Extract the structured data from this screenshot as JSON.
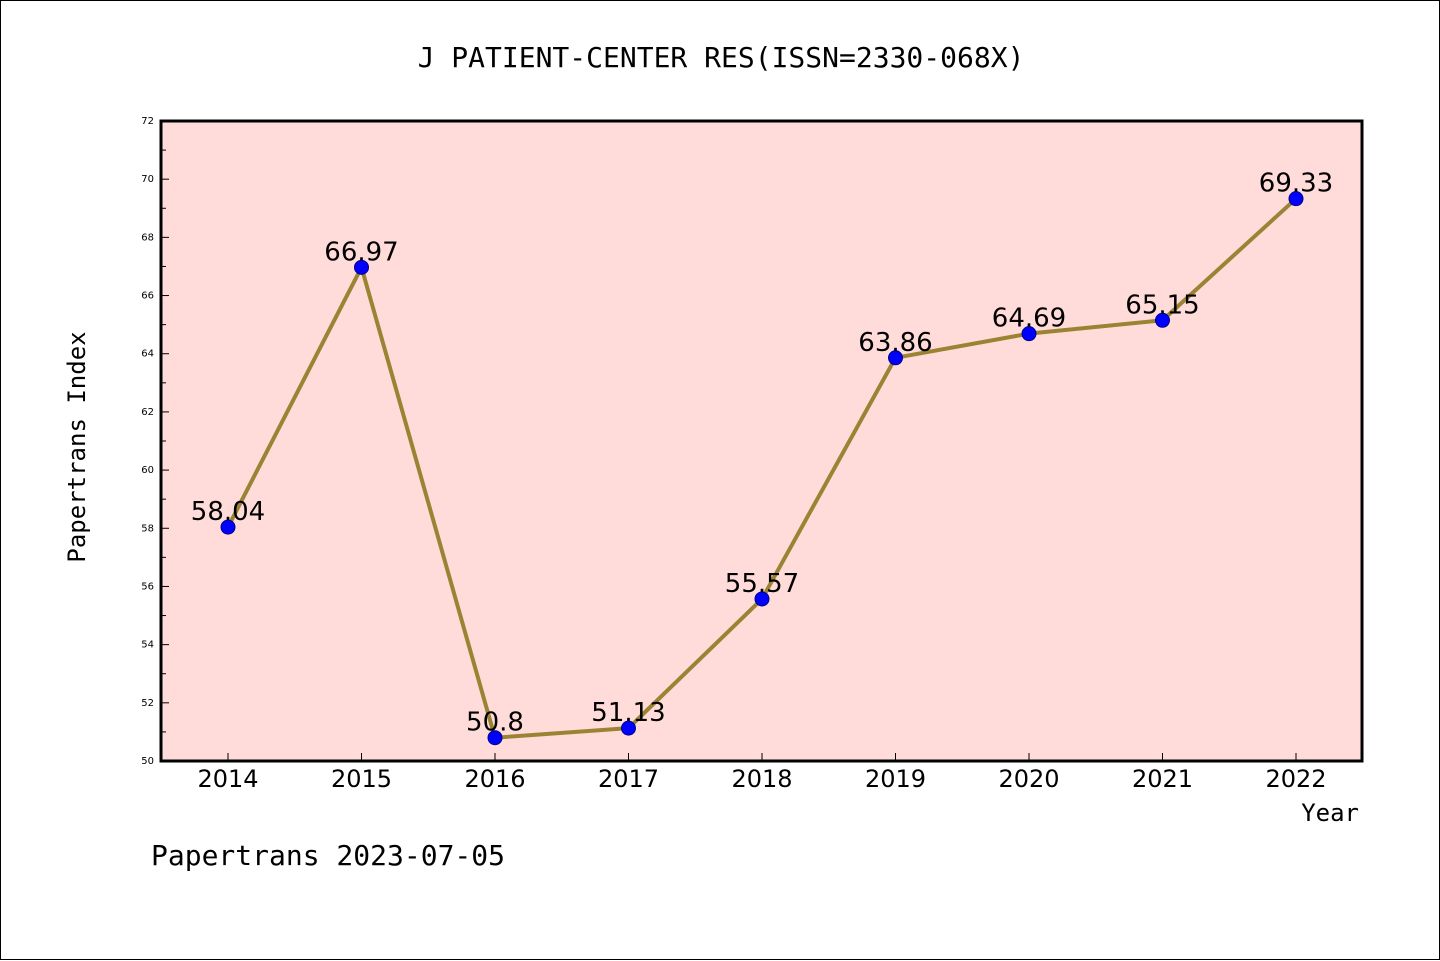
{
  "chart_data": {
    "type": "line",
    "title": "J PATIENT-CENTER RES(ISSN=2330-068X)",
    "xlabel": "Year",
    "ylabel": "Papertrans Index",
    "categories": [
      "2014",
      "2015",
      "2016",
      "2017",
      "2018",
      "2019",
      "2020",
      "2021",
      "2022"
    ],
    "values": [
      58.04,
      66.97,
      50.8,
      51.13,
      55.57,
      63.86,
      64.69,
      65.15,
      69.33
    ],
    "data_labels": [
      "58.04",
      "66.97",
      "50.8",
      "51.13",
      "55.57",
      "63.86",
      "64.69",
      "65.15",
      "69.33"
    ],
    "ylim": [
      50,
      72
    ],
    "yticks": [
      "50",
      "52",
      "54",
      "56",
      "58",
      "60",
      "62",
      "64",
      "66",
      "68",
      "70",
      "72"
    ],
    "footer": "Papertrans 2023-07-05",
    "colors": {
      "plot_background": "#ffdcda",
      "line": "#9a8434",
      "marker": "#0000ff"
    }
  }
}
